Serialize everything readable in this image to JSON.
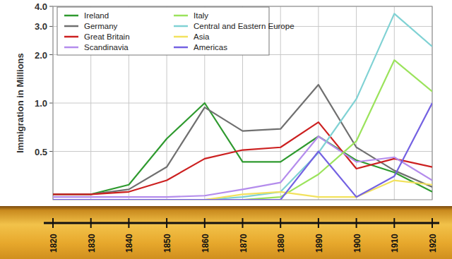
{
  "chart_data": {
    "type": "line",
    "y_label": "Immigration in Millions",
    "x": [
      1820,
      1830,
      1840,
      1850,
      1860,
      1870,
      1880,
      1890,
      1900,
      1910,
      1920
    ],
    "series": [
      {
        "name": "Ireland",
        "color": "#2f9a2f",
        "values": [
          0.27,
          0.27,
          0.31,
          0.6,
          1.0,
          0.43,
          0.43,
          0.62,
          0.44,
          0.37,
          0.28
        ]
      },
      {
        "name": "Germany",
        "color": "#707070",
        "values": [
          0.27,
          0.27,
          0.29,
          0.4,
          0.94,
          0.67,
          0.69,
          1.3,
          0.53,
          0.38,
          0.3
        ]
      },
      {
        "name": "Great Britain",
        "color": "#cc2020",
        "values": [
          0.27,
          0.27,
          0.28,
          0.33,
          0.45,
          0.51,
          0.53,
          0.76,
          0.39,
          0.45,
          0.4
        ]
      },
      {
        "name": "Scandinavia",
        "color": "#b48cec",
        "values": [
          0.26,
          0.26,
          0.26,
          0.26,
          0.265,
          0.29,
          0.32,
          0.62,
          0.43,
          0.46,
          0.33
        ]
      },
      {
        "name": "Italy",
        "color": "#9be35c",
        "values": [
          0.25,
          0.25,
          0.25,
          0.25,
          0.25,
          0.25,
          0.26,
          0.36,
          0.58,
          1.85,
          1.18
        ]
      },
      {
        "name": "Central and Eastern Europe",
        "color": "#80d2d4",
        "values": [
          0.25,
          0.25,
          0.25,
          0.25,
          0.25,
          0.26,
          0.28,
          0.49,
          1.06,
          3.6,
          2.25
        ]
      },
      {
        "name": "Asia",
        "color": "#f2e25e",
        "values": [
          0.25,
          0.25,
          0.25,
          0.25,
          0.25,
          0.27,
          0.28,
          0.26,
          0.26,
          0.33,
          0.31
        ]
      },
      {
        "name": "Americas",
        "color": "#7462e2",
        "values": [
          0.25,
          0.25,
          0.25,
          0.25,
          0.25,
          0.25,
          0.25,
          0.5,
          0.26,
          0.35,
          1.0
        ]
      }
    ],
    "xlim": [
      1820,
      1920
    ],
    "xticks": [
      1820,
      1830,
      1840,
      1850,
      1860,
      1870,
      1880,
      1890,
      1900,
      1910,
      1920
    ],
    "ylim": [
      0.25,
      4
    ],
    "yticks": [
      0.5,
      {
        "value": 1,
        "label": "1.0"
      },
      {
        "value": 2,
        "label": "2.0"
      },
      {
        "value": 3,
        "label": "3.0"
      },
      {
        "value": 4,
        "label": "4.0"
      }
    ],
    "log": "y",
    "grid": true,
    "legend": "upper left"
  }
}
